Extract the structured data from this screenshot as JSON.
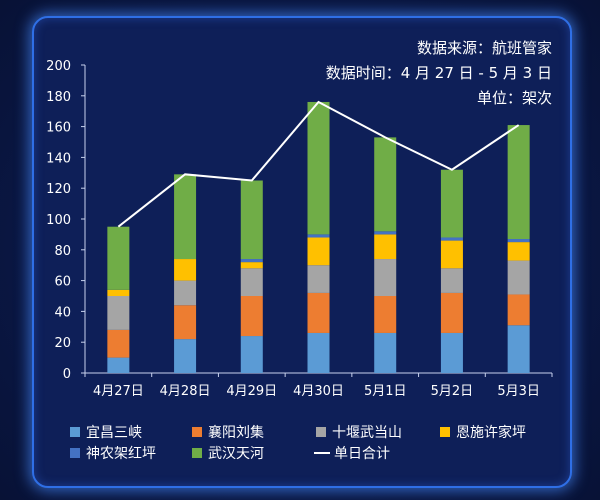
{
  "source_lines": [
    "数据来源：航班管家",
    "数据时间：4 月 27 日 - 5 月 3 日",
    "单位：架次"
  ],
  "chart_data": {
    "type": "bar",
    "stacked": true,
    "categories": [
      "4月27日",
      "4月28日",
      "4月29日",
      "4月30日",
      "5月1日",
      "5月2日",
      "5月3日"
    ],
    "series": [
      {
        "name": "宜昌三峡",
        "color": "#5b9bd5",
        "values": [
          10,
          22,
          24,
          26,
          26,
          26,
          31
        ]
      },
      {
        "name": "襄阳刘集",
        "color": "#ed7d31",
        "values": [
          18,
          22,
          26,
          26,
          24,
          26,
          20
        ]
      },
      {
        "name": "十堰武当山",
        "color": "#a5a5a5",
        "values": [
          22,
          16,
          18,
          18,
          24,
          16,
          22
        ]
      },
      {
        "name": "恩施许家坪",
        "color": "#ffc000",
        "values": [
          4,
          14,
          4,
          18,
          16,
          18,
          12
        ]
      },
      {
        "name": "神农架红坪",
        "color": "#4472c4",
        "values": [
          0,
          0,
          2,
          2,
          2,
          2,
          2
        ]
      },
      {
        "name": "武汉天河",
        "color": "#70ad47",
        "values": [
          41,
          55,
          51,
          86,
          61,
          44,
          74
        ]
      }
    ],
    "line": {
      "name": "单日合计",
      "color": "#ffffff",
      "values": [
        95,
        129,
        125,
        176,
        153,
        132,
        161
      ]
    },
    "yticks": [
      "0",
      "20",
      "40",
      "60",
      "80",
      "100",
      "120",
      "140",
      "160",
      "180",
      "200"
    ],
    "ylim": [
      0,
      200
    ],
    "grid": false,
    "legend": "bottom"
  }
}
